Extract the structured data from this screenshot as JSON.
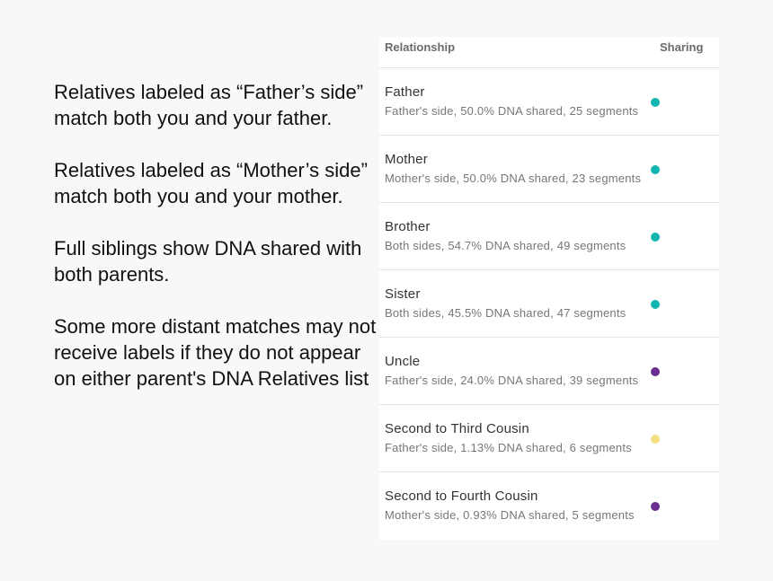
{
  "paragraphs": [
    "Relatives labeled as “Father’s side” match both you and your father.",
    "Relatives labeled as “Mother’s side” match both you and your mother.",
    "Full siblings show DNA shared with both parents.",
    "Some more distant matches may not receive labels if they do not appear on either parent's DNA Relatives list"
  ],
  "table": {
    "headers": [
      "Relationship",
      "Sharing"
    ],
    "rows": [
      {
        "name": "Father",
        "detail": "Father's side,  50.0% DNA shared, 25 segments",
        "color": "#13b5b1"
      },
      {
        "name": "Mother",
        "detail": "Mother's side,  50.0% DNA shared, 23 segments",
        "color": "#13b5b1"
      },
      {
        "name": "Brother",
        "detail": "Both sides,  54.7% DNA shared, 49 segments",
        "color": "#13b5b1"
      },
      {
        "name": "Sister",
        "detail": "Both sides,  45.5% DNA shared, 47 segments",
        "color": "#13b5b1"
      },
      {
        "name": "Uncle",
        "detail": "Father's side,  24.0% DNA shared, 39 segments",
        "color": "#6b2d8f"
      },
      {
        "name": "Second to Third Cousin",
        "detail": "Father's side,  1.13% DNA shared, 6 segments",
        "color": "#f5dd84"
      },
      {
        "name": "Second to Fourth Cousin",
        "detail": "Mother's side,  0.93% DNA shared, 5 segments",
        "color": "#6b2d8f"
      }
    ]
  }
}
